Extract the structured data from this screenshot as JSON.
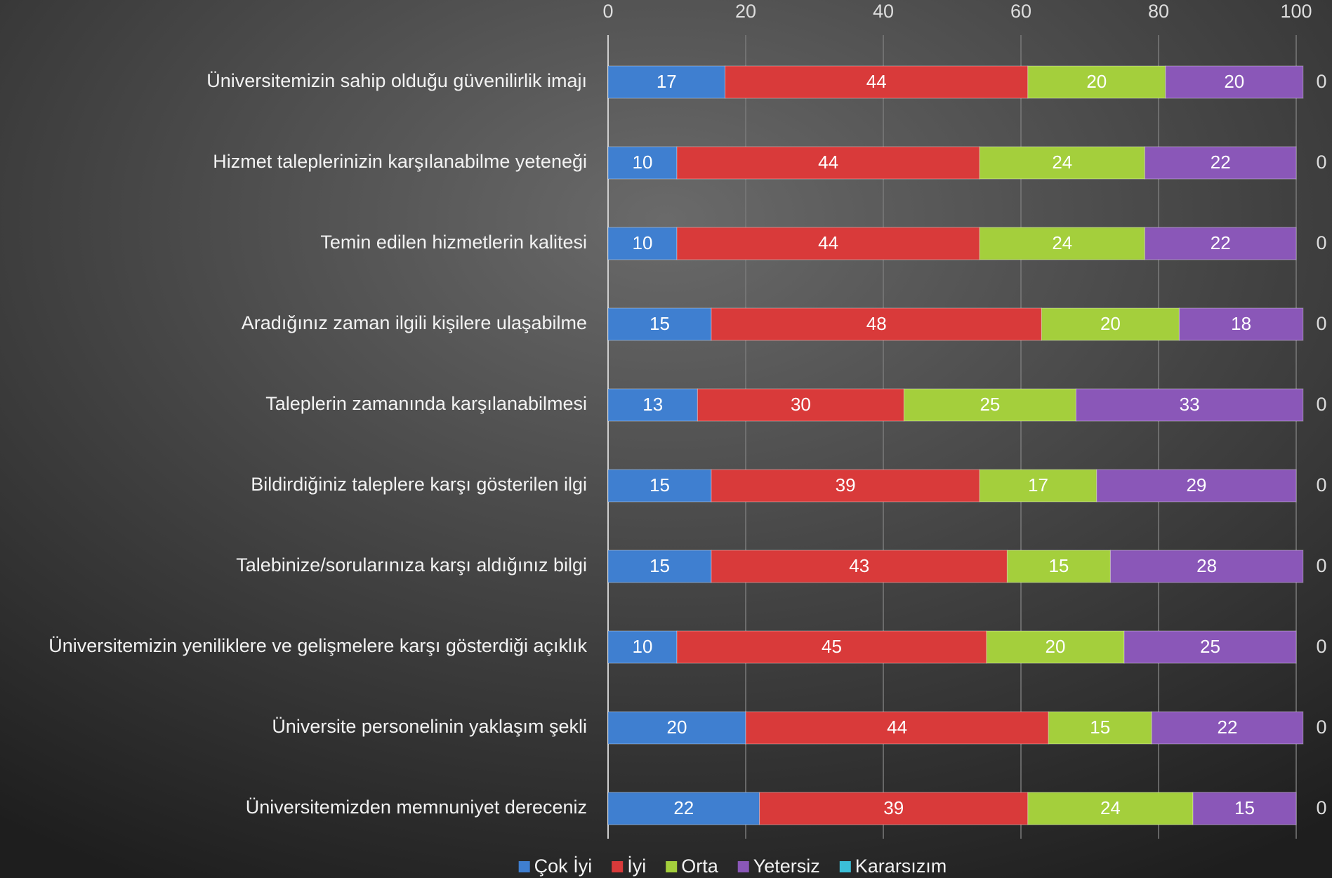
{
  "chart_data": {
    "type": "stacked_bar_horizontal",
    "categories": [
      "Üniversitemizin sahip olduğu güvenilirlik imajı",
      "Hizmet taleplerinizin karşılanabilme yeteneği",
      "Temin edilen hizmetlerin kalitesi",
      "Aradığınız zaman ilgili kişilere ulaşabilme",
      "Taleplerin zamanında karşılanabilmesi",
      "Bildirdiğiniz taleplere karşı gösterilen ilgi",
      "Talebinize/sorularınıza karşı aldığınız bilgi",
      "Üniversitemizin yeniliklere ve gelişmelere karşı gösterdiği açıklık",
      "Üniversite personelinin yaklaşım şekli",
      "Üniversitemizden memnuniyet dereceniz"
    ],
    "series": [
      {
        "name": "Çok İyi",
        "color": "#3f7fd0",
        "values": [
          17,
          10,
          10,
          15,
          13,
          15,
          15,
          10,
          20,
          22
        ]
      },
      {
        "name": "İyi",
        "color": "#d93a3a",
        "values": [
          44,
          44,
          44,
          48,
          30,
          39,
          43,
          45,
          44,
          39
        ]
      },
      {
        "name": "Orta",
        "color": "#a4cf3c",
        "values": [
          20,
          24,
          24,
          20,
          25,
          17,
          15,
          20,
          15,
          24
        ]
      },
      {
        "name": "Yetersiz",
        "color": "#8a57b8",
        "values": [
          20,
          22,
          22,
          18,
          33,
          29,
          28,
          25,
          22,
          15
        ]
      },
      {
        "name": "Kararsızım",
        "color": "#3bbfd8",
        "values": [
          0,
          0,
          0,
          0,
          0,
          0,
          0,
          0,
          0,
          0
        ]
      }
    ],
    "xlim": [
      0,
      100
    ],
    "xticks": [
      0,
      20,
      40,
      60,
      80,
      100
    ],
    "grid": true,
    "legend": "bottom"
  }
}
